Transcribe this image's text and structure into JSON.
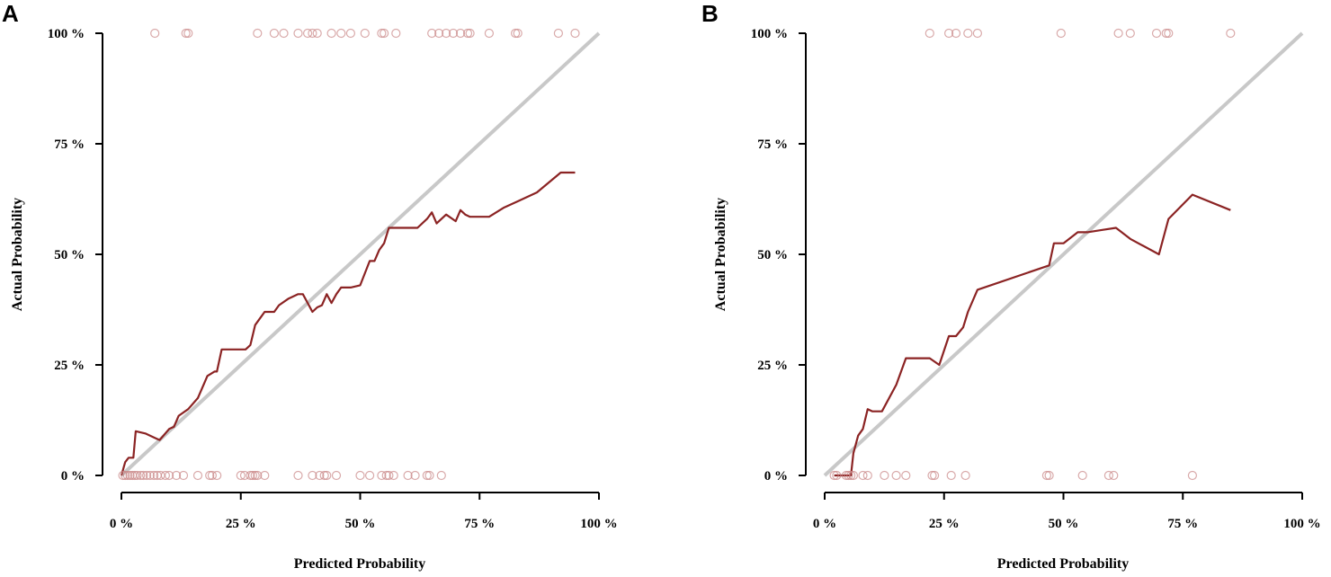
{
  "colors": {
    "calibration_line": "#8b2323",
    "reference_line": "#c8c8c8",
    "rug_points": "#c98686"
  },
  "chart_data": [
    {
      "type": "line",
      "panel_label": "A",
      "xlabel": "Predicted Probability",
      "ylabel": "Actual Probability",
      "xlim": [
        0,
        100
      ],
      "ylim": [
        0,
        100
      ],
      "x_tick_labels": [
        "0 %",
        "25 %",
        "50 %",
        "75 %",
        "100 %"
      ],
      "y_tick_labels": [
        "0 %",
        "25 %",
        "50 %",
        "75 %",
        "100 %"
      ],
      "ticks": [
        0,
        25,
        50,
        75,
        100
      ],
      "reference_line": [
        [
          0,
          0
        ],
        [
          100,
          100
        ]
      ],
      "series": [
        {
          "name": "calibration",
          "x": [
            0,
            0.8,
            1.5,
            2.5,
            3,
            5,
            7,
            8,
            10,
            11,
            12,
            14,
            16,
            18,
            19.5,
            20,
            21,
            22,
            24,
            26,
            27,
            28,
            29,
            30,
            32,
            33,
            35,
            37,
            38,
            39,
            40,
            41,
            42,
            43,
            44,
            45,
            46,
            48,
            50,
            52,
            53,
            54,
            55,
            56,
            60,
            62,
            64,
            65,
            66,
            68,
            70,
            71,
            72,
            73,
            75,
            77,
            80,
            83,
            87,
            92,
            95
          ],
          "y": [
            0,
            3,
            4,
            4,
            10,
            9.5,
            8.5,
            8,
            10.5,
            11,
            13.5,
            15,
            17.5,
            22.5,
            23.5,
            23.5,
            28.5,
            28.5,
            28.5,
            28.5,
            29.5,
            34,
            35.5,
            37,
            37,
            38.5,
            40,
            41,
            41,
            39,
            37,
            38,
            38.5,
            41,
            39,
            41,
            42.5,
            42.5,
            43,
            48.5,
            48.5,
            51,
            52.5,
            56,
            56,
            56,
            58,
            59.5,
            57,
            59,
            57.5,
            60,
            59,
            58.5,
            58.5,
            58.5,
            60.5,
            62,
            64,
            68.5,
            68.5
          ]
        },
        {
          "name": "events_rug",
          "y": 100,
          "x": [
            7,
            13.5,
            14,
            28.5,
            32,
            34,
            37,
            39,
            40,
            41,
            44,
            46,
            48,
            51,
            54.5,
            55,
            57.5,
            65,
            66.5,
            68,
            69.5,
            71,
            72.5,
            73,
            77,
            82.5,
            83,
            91.5,
            95
          ]
        },
        {
          "name": "non_events_rug",
          "y": 0,
          "x": [
            0.3,
            0.8,
            1.3,
            1.8,
            2.3,
            2.8,
            3.3,
            4,
            4.6,
            5.3,
            6,
            6.8,
            7.5,
            8.2,
            9.2,
            10,
            11.5,
            13,
            16,
            18.5,
            19,
            20,
            25,
            25.8,
            27,
            27.5,
            28,
            28.5,
            30,
            37,
            40,
            41.5,
            42.5,
            43,
            45,
            50,
            52,
            54.5,
            55.5,
            56,
            57,
            60,
            61.5,
            64,
            64.5,
            67
          ]
        }
      ]
    },
    {
      "type": "line",
      "panel_label": "B",
      "xlabel": "Predicted Probability",
      "ylabel": "Actual Probability",
      "xlim": [
        0,
        100
      ],
      "ylim": [
        0,
        100
      ],
      "x_tick_labels": [
        "0 %",
        "25 %",
        "50 %",
        "75 %",
        "100 %"
      ],
      "y_tick_labels": [
        "0 %",
        "25 %",
        "50 %",
        "75 %",
        "100 %"
      ],
      "ticks": [
        0,
        25,
        50,
        75,
        100
      ],
      "reference_line": [
        [
          0,
          0
        ],
        [
          100,
          100
        ]
      ],
      "series": [
        {
          "name": "calibration",
          "x": [
            2,
            5.5,
            6,
            7,
            8,
            9,
            10,
            12,
            15,
            17,
            20,
            22,
            24,
            26,
            27.5,
            29,
            30,
            32,
            47,
            48,
            50,
            53,
            55,
            58,
            61,
            64,
            70,
            72,
            77,
            85
          ],
          "y": [
            0,
            0,
            5,
            9,
            10.5,
            15,
            14.5,
            14.5,
            20.5,
            26.5,
            26.5,
            26.5,
            25,
            31.5,
            31.5,
            33.5,
            37,
            42,
            47.5,
            52.5,
            52.5,
            55,
            55,
            55.5,
            56,
            53.5,
            50,
            58,
            63.5,
            60
          ]
        },
        {
          "name": "events_rug",
          "y": 100,
          "x": [
            22,
            26,
            27.5,
            30,
            32,
            49.5,
            61.5,
            64,
            69.5,
            71.5,
            72,
            85
          ]
        },
        {
          "name": "non_events_rug",
          "y": 0,
          "x": [
            2,
            2.5,
            4.5,
            5,
            5.5,
            6,
            8,
            9,
            12.5,
            15,
            17,
            22.5,
            23,
            26.5,
            29.5,
            46.5,
            47,
            54,
            59.5,
            60.5,
            77
          ]
        }
      ]
    }
  ]
}
